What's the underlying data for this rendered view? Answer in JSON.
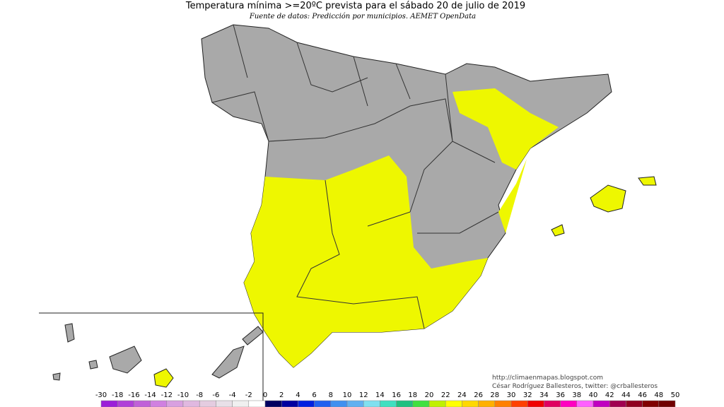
{
  "header": {
    "title": "Temperatura mínima >=20ºC prevista para el sábado 20 de julio de 2019",
    "subtitle": "Fuente de datos: Predicción por municipios. AEMET OpenData"
  },
  "credits": {
    "url": "http://climaenmapas.blogspot.com",
    "author": "César Rodríguez Ballesteros, twitter: @crballesteros"
  },
  "legend": {
    "ticks": [
      -30,
      -18,
      -16,
      -14,
      -12,
      -10,
      -8,
      -6,
      -4,
      -2,
      0,
      2,
      4,
      6,
      8,
      10,
      12,
      14,
      16,
      18,
      20,
      22,
      24,
      26,
      28,
      30,
      32,
      34,
      36,
      38,
      40,
      42,
      44,
      46,
      48,
      50
    ],
    "colors": [
      "#9a1fd8",
      "#b040d8",
      "#c060d8",
      "#d080e0",
      "#d8a0e0",
      "#e0b8e0",
      "#e4cce0",
      "#e8e0e8",
      "#f0f0f0",
      "#ffffff",
      "#000060",
      "#0000a0",
      "#0020e0",
      "#2060f0",
      "#4090f0",
      "#60b0f0",
      "#80e0f0",
      "#40e0c0",
      "#20c080",
      "#40e040",
      "#c0f000",
      "#ffff00",
      "#ffd800",
      "#ffb000",
      "#ff8000",
      "#ff4000",
      "#f00000",
      "#e00060",
      "#ff00c0",
      "#ff60ff",
      "#c000c0",
      "#a00050",
      "#900020",
      "#800000",
      "#700000"
    ]
  }
}
